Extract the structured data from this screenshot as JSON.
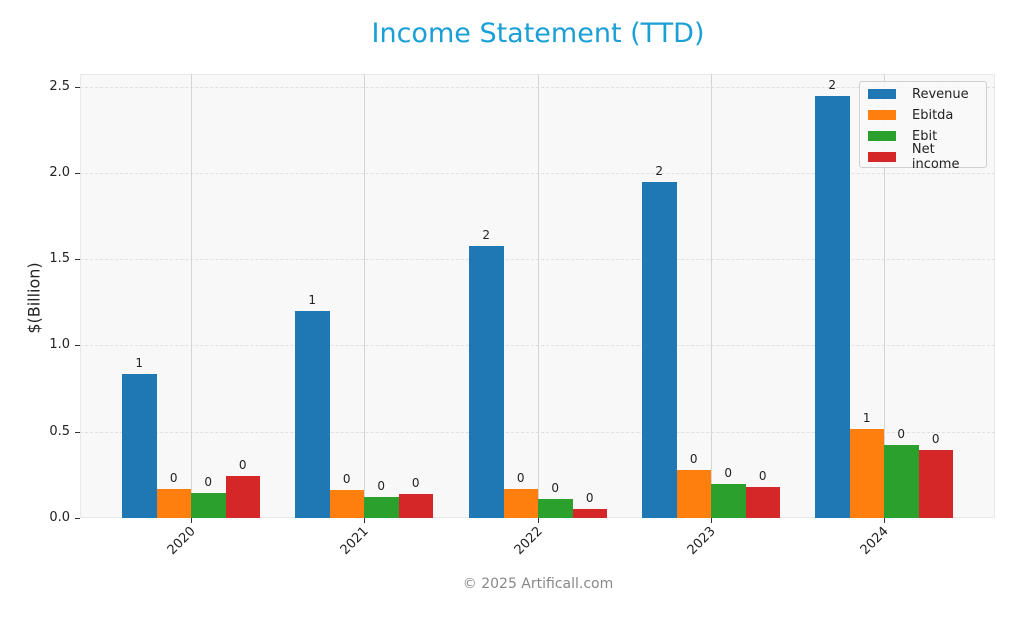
{
  "title": "Income Statement (TTD)",
  "footer": "© 2025 Artificall.com",
  "chart_data": {
    "type": "bar",
    "title": "Income Statement (TTD)",
    "xlabel": "",
    "ylabel": "$(Billion)",
    "ylim": [
      0,
      2.58
    ],
    "yticks": [
      "0.0",
      "0.5",
      "1.0",
      "1.5",
      "2.0",
      "2.5"
    ],
    "grid": true,
    "legend_position": "upper right",
    "categories": [
      "2020",
      "2021",
      "2022",
      "2023",
      "2024"
    ],
    "series": [
      {
        "name": "Revenue",
        "color": "#1f77b4",
        "values": [
          0.836,
          1.2,
          1.578,
          1.946,
          2.445
        ],
        "labels": [
          "1",
          "1",
          "2",
          "2",
          "2"
        ]
      },
      {
        "name": "Ebitda",
        "color": "#ff7f0e",
        "values": [
          0.168,
          0.162,
          0.168,
          0.278,
          0.516
        ],
        "labels": [
          "0",
          "0",
          "0",
          "0",
          "1"
        ]
      },
      {
        "name": "Ebit",
        "color": "#2ca02c",
        "values": [
          0.145,
          0.122,
          0.11,
          0.197,
          0.423
        ],
        "labels": [
          "0",
          "0",
          "0",
          "0",
          "0"
        ]
      },
      {
        "name": "Net income",
        "color": "#d62728",
        "values": [
          0.242,
          0.137,
          0.053,
          0.179,
          0.393
        ],
        "labels": [
          "0",
          "0",
          "0",
          "0",
          "0"
        ]
      }
    ]
  }
}
